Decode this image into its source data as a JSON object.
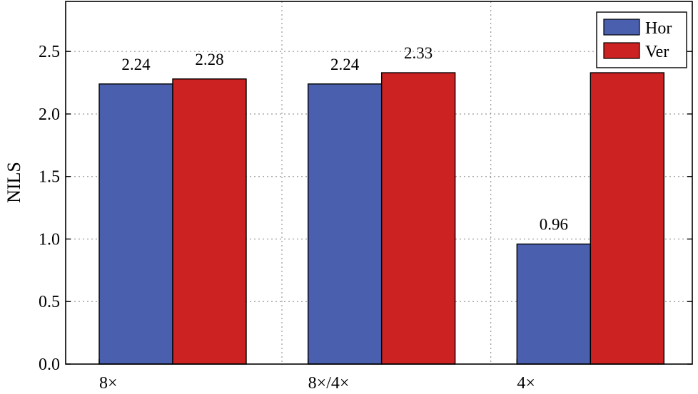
{
  "chart_data": {
    "type": "bar",
    "categories": [
      "8×",
      "8×/4×",
      "4×"
    ],
    "series": [
      {
        "name": "Hor",
        "values": [
          2.24,
          2.24,
          0.96
        ],
        "color": "#4a5fad",
        "labels": [
          "2.24",
          "2.24",
          "0.96"
        ]
      },
      {
        "name": "Ver",
        "values": [
          2.28,
          2.33,
          2.33
        ],
        "color": "#cc2222",
        "labels": [
          "2.28",
          "2.33",
          ""
        ]
      }
    ],
    "ylabel": "NILS",
    "xlabel": "",
    "ylim": [
      0,
      2.9
    ],
    "yticks": [
      "0.0",
      "0.5",
      "1.0",
      "1.5",
      "2.0",
      "2.5"
    ],
    "grid": true,
    "legend_position": "top-right"
  }
}
